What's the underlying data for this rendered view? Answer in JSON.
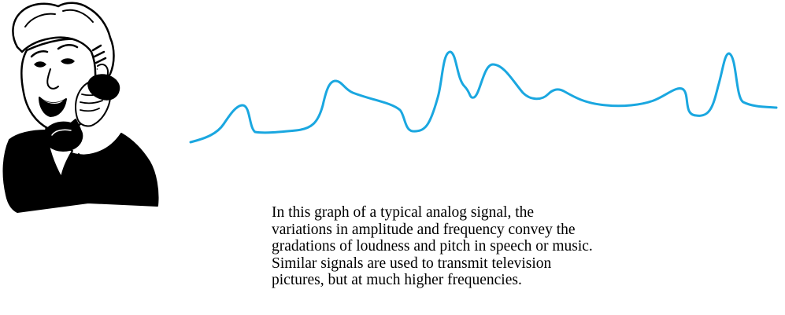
{
  "colors": {
    "signal": "#1aa7e0",
    "ink": "#000000",
    "paper": "#ffffff"
  },
  "icons": {
    "person": "person-on-telephone-icon"
  },
  "caption": {
    "lines": [
      "In this graph of a typical analog signal, the",
      "variations in amplitude and frequency convey the",
      "gradations of loudness and pitch in speech or music.",
      "Similar signals are used to transmit television",
      "pictures, but at much higher frequencies."
    ]
  }
}
